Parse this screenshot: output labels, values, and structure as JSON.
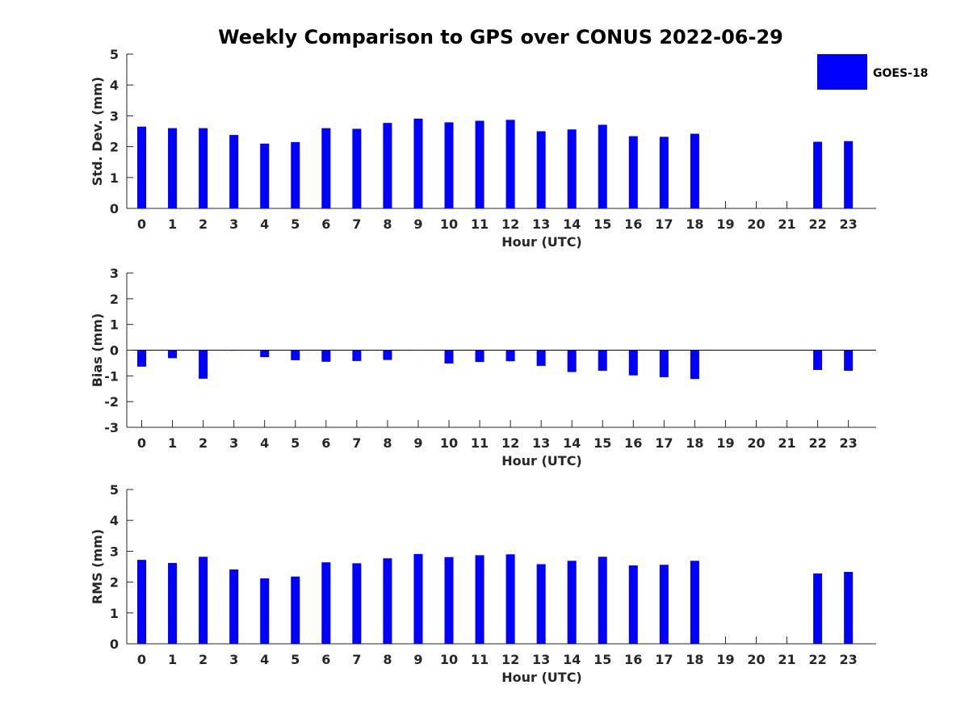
{
  "chart_data": {
    "type": "bar",
    "title": "Weekly Comparison to GPS over CONUS 2022-06-29",
    "legend": {
      "label": "GOES-18",
      "color": "#0000ff",
      "position": "top-right"
    },
    "categories": [
      "0",
      "1",
      "2",
      "3",
      "4",
      "5",
      "6",
      "7",
      "8",
      "9",
      "10",
      "11",
      "12",
      "13",
      "14",
      "15",
      "16",
      "17",
      "18",
      "19",
      "20",
      "21",
      "22",
      "23"
    ],
    "panels": [
      {
        "id": "std",
        "ylabel": "Std. Dev. (mm)",
        "xlabel": "Hour (UTC)",
        "ylim": [
          0,
          5
        ],
        "yticks": [
          0,
          1,
          2,
          3,
          4,
          5
        ],
        "values": [
          2.65,
          2.6,
          2.6,
          2.38,
          2.1,
          2.15,
          2.6,
          2.58,
          2.77,
          2.91,
          2.79,
          2.84,
          2.87,
          2.5,
          2.56,
          2.71,
          2.34,
          2.32,
          2.42,
          null,
          null,
          null,
          2.16,
          2.18
        ]
      },
      {
        "id": "bias",
        "ylabel": "Bias (mm)",
        "xlabel": "Hour (UTC)",
        "ylim": [
          -3,
          3
        ],
        "yticks": [
          -3,
          -2,
          -1,
          0,
          1,
          2,
          3
        ],
        "values": [
          -0.64,
          -0.31,
          -1.11,
          -0.02,
          -0.27,
          -0.39,
          -0.45,
          -0.42,
          -0.38,
          0.0,
          -0.52,
          -0.46,
          -0.43,
          -0.61,
          -0.85,
          -0.8,
          -0.98,
          -1.05,
          -1.12,
          null,
          null,
          null,
          -0.77,
          -0.8
        ]
      },
      {
        "id": "rms",
        "ylabel": "RMS (mm)",
        "xlabel": "Hour (UTC)",
        "ylim": [
          0,
          5
        ],
        "yticks": [
          0,
          1,
          2,
          3,
          4,
          5
        ],
        "values": [
          2.72,
          2.62,
          2.82,
          2.41,
          2.12,
          2.18,
          2.64,
          2.61,
          2.77,
          2.91,
          2.81,
          2.87,
          2.9,
          2.58,
          2.69,
          2.82,
          2.54,
          2.56,
          2.69,
          null,
          null,
          null,
          2.28,
          2.33
        ]
      }
    ]
  }
}
